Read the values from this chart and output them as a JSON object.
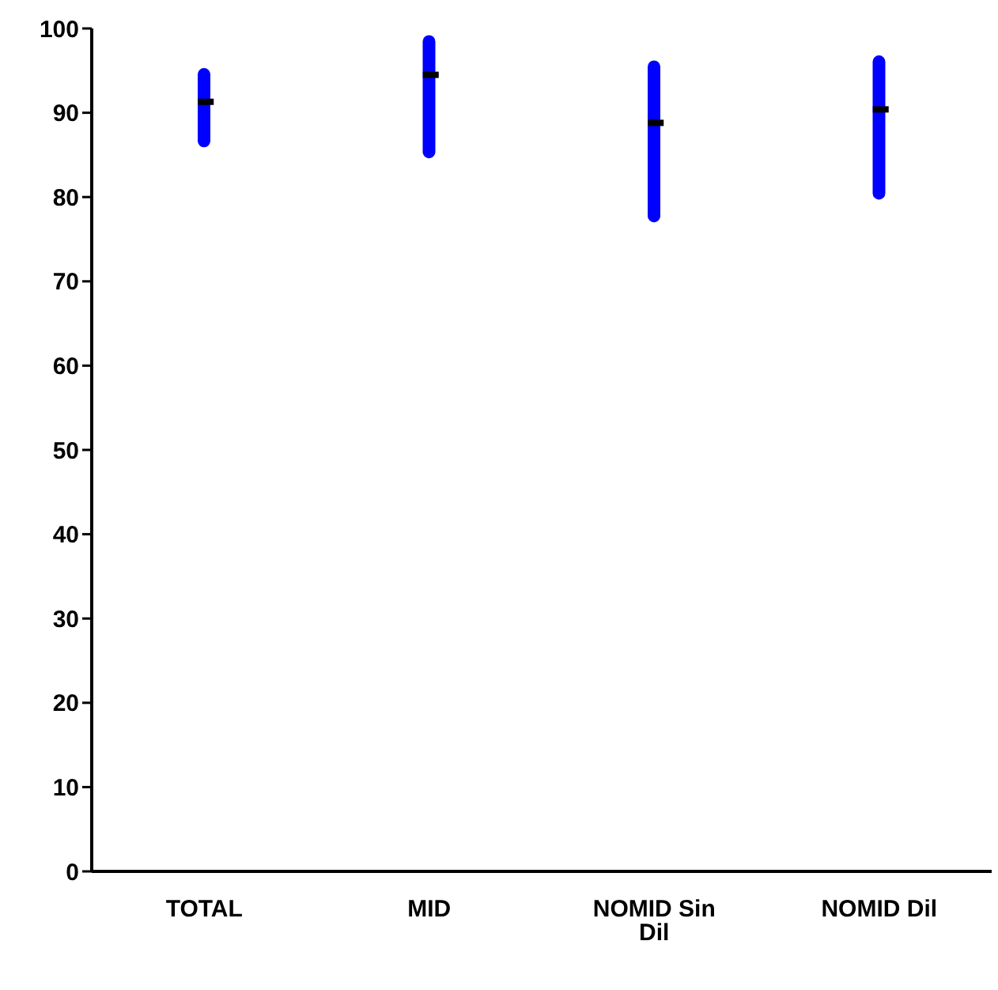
{
  "chart_data": {
    "type": "bar",
    "categories": [
      "TOTAL",
      "MID",
      "NOMID Sin Dil",
      "NOMID Dil"
    ],
    "series": [
      {
        "color": "#0000ff",
        "base": [
          85.9,
          84.6,
          77.0,
          79.7
        ],
        "values": [
          9.4,
          14.6,
          19.2,
          17.1
        ]
      },
      {
        "type": "scatter",
        "color": "#000000",
        "x": [
          "TOTAL",
          "MID",
          "NOMID Sin Dil",
          "NOMID Dil"
        ],
        "values": [
          91.3,
          94.5,
          88.8,
          90.4
        ]
      }
    ],
    "ylim": [
      0,
      100
    ],
    "yticks": [
      0,
      10,
      20,
      30,
      40,
      50,
      60,
      70,
      80,
      90,
      100
    ],
    "grid": false,
    "legend": false
  }
}
